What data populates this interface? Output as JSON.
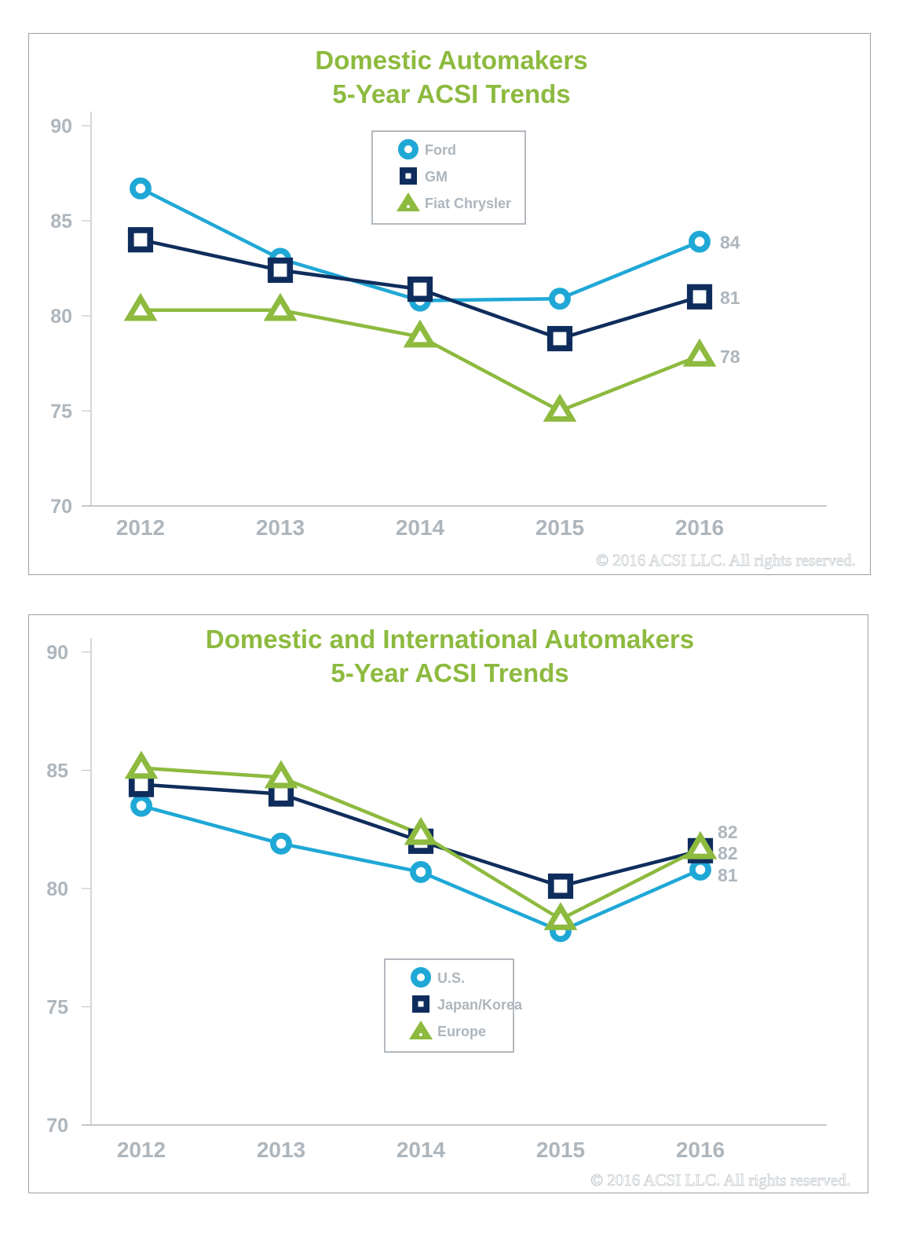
{
  "colors": {
    "title": "#8dba3f",
    "axis_text": "#aeb6bd",
    "axis_line": "#c4c8cc",
    "light_blue": "#1fa8d6",
    "navy": "#0f2d5c",
    "green": "#8dba3f"
  },
  "chart_data": [
    {
      "type": "line",
      "title": "Domestic Automakers",
      "subtitle": "5-Year ACSI Trends",
      "xlabel": "",
      "ylabel": "",
      "x": [
        "2012",
        "2013",
        "2014",
        "2015",
        "2016"
      ],
      "ylim": [
        70,
        90
      ],
      "yticks": [
        70,
        75,
        80,
        85,
        90
      ],
      "grid": false,
      "legend_position": "top-center",
      "series": [
        {
          "name": "Ford",
          "marker": "circle",
          "color": "#1fa8d6",
          "values": [
            86.7,
            83.0,
            80.8,
            80.9,
            83.9
          ],
          "end_label": "84"
        },
        {
          "name": "GM",
          "marker": "square",
          "color": "#0f2d5c",
          "values": [
            84.0,
            82.4,
            81.4,
            78.8,
            81.0
          ],
          "end_label": "81"
        },
        {
          "name": "Fiat Chrysler",
          "marker": "triangle",
          "color": "#8dba3f",
          "values": [
            80.3,
            80.3,
            78.9,
            75.0,
            77.9
          ],
          "end_label": "78"
        }
      ],
      "copyright": "© 2016 ACSI LLC. All rights reserved."
    },
    {
      "type": "line",
      "title": "Domestic and International Automakers",
      "subtitle": "5-Year ACSI Trends",
      "xlabel": "",
      "ylabel": "",
      "x": [
        "2012",
        "2013",
        "2014",
        "2015",
        "2016"
      ],
      "ylim": [
        70,
        90
      ],
      "yticks": [
        70,
        75,
        80,
        85,
        90
      ],
      "grid": false,
      "legend_position": "bottom-center",
      "series": [
        {
          "name": "U.S.",
          "marker": "circle",
          "color": "#1fa8d6",
          "values": [
            83.5,
            81.9,
            80.7,
            78.2,
            80.8
          ],
          "end_label": "81"
        },
        {
          "name": "Japan/Korea",
          "marker": "square",
          "color": "#0f2d5c",
          "values": [
            84.4,
            84.0,
            82.0,
            80.1,
            81.6
          ],
          "end_label": "82"
        },
        {
          "name": "Europe",
          "marker": "triangle",
          "color": "#8dba3f",
          "values": [
            85.1,
            84.7,
            82.3,
            78.7,
            81.7
          ],
          "end_label": "82"
        }
      ],
      "copyright": "© 2016 ACSI LLC. All rights reserved."
    }
  ]
}
